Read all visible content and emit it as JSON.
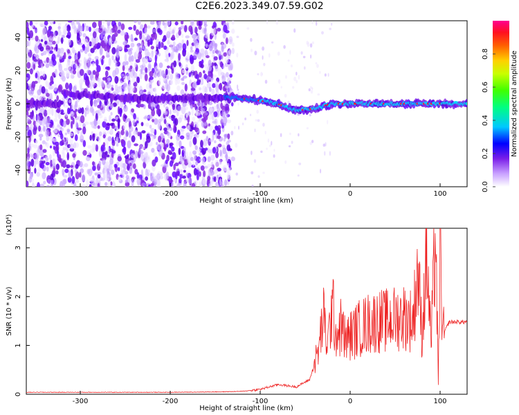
{
  "title": "C2E6.2023.349.07.59.G02",
  "colors": {
    "signal": "#ee2222",
    "spec_low": "#dcc8ff",
    "spec_mid": "#8a2be2",
    "spec_peak": "#ff2020"
  },
  "chart_data": [
    {
      "type": "heatmap",
      "title": "C2E6.2023.349.07.59.G02",
      "xlabel": "Height of straight line (km)",
      "ylabel": "Frequency (Hz)",
      "xlim": [
        -360,
        130
      ],
      "ylim": [
        -50,
        50
      ],
      "xticks": [
        -300,
        -200,
        -100,
        0,
        100
      ],
      "yticks": [
        -40,
        -20,
        0,
        20,
        40
      ],
      "colorbar": {
        "label": "Normalized spectral amplitude",
        "range": [
          0,
          1
        ],
        "ticks": [
          "0.0",
          "0.2",
          "0.4",
          "0.6",
          "0.8"
        ],
        "colormap": "white-purple-blue-cyan-green-yellow-orange-red-magenta"
      },
      "features": {
        "noise_region_km": [
          -360,
          -130
        ],
        "band_center_hz": [
          {
            "x": -320,
            "y": 6
          },
          {
            "x": -230,
            "y": 3
          },
          {
            "x": -130,
            "y": 4
          },
          {
            "x": -100,
            "y": 2
          },
          {
            "x": -80,
            "y": 0
          },
          {
            "x": -60,
            "y": -4
          },
          {
            "x": -40,
            "y": -3
          },
          {
            "x": -20,
            "y": 0
          },
          {
            "x": 0,
            "y": 0
          },
          {
            "x": 50,
            "y": 0
          },
          {
            "x": 100,
            "y": 0
          },
          {
            "x": 130,
            "y": 0
          }
        ]
      },
      "grid": false
    },
    {
      "type": "line",
      "xlabel": "Height of straight line (km)",
      "ylabel": "SNR (10 * v/v)",
      "multiplier": "(x10⁴)",
      "xlim": [
        -360,
        130
      ],
      "ylim": [
        0,
        3.4
      ],
      "xticks": [
        -300,
        -200,
        -100,
        0,
        100
      ],
      "yticks": [
        0,
        1,
        2,
        3
      ],
      "series": [
        {
          "x": [
            -360,
            -300,
            -200,
            -140,
            -120,
            -100,
            -80,
            -60,
            -45,
            -35,
            -30,
            -25,
            -20,
            -15,
            -10,
            -5,
            0,
            10,
            20,
            30,
            40,
            50,
            60,
            70,
            75,
            80,
            85,
            90,
            95,
            98,
            100,
            103,
            110,
            120,
            130
          ],
          "y": [
            0.04,
            0.04,
            0.04,
            0.05,
            0.06,
            0.1,
            0.2,
            0.15,
            0.3,
            0.9,
            1.6,
            1.0,
            1.8,
            1.2,
            1.4,
            1.1,
            1.2,
            1.35,
            1.45,
            1.5,
            1.5,
            1.55,
            1.6,
            1.5,
            2.6,
            1.2,
            2.9,
            1.0,
            3.4,
            0.1,
            3.1,
            1.2,
            1.48,
            1.48,
            1.48
          ]
        }
      ],
      "grid": false
    }
  ]
}
